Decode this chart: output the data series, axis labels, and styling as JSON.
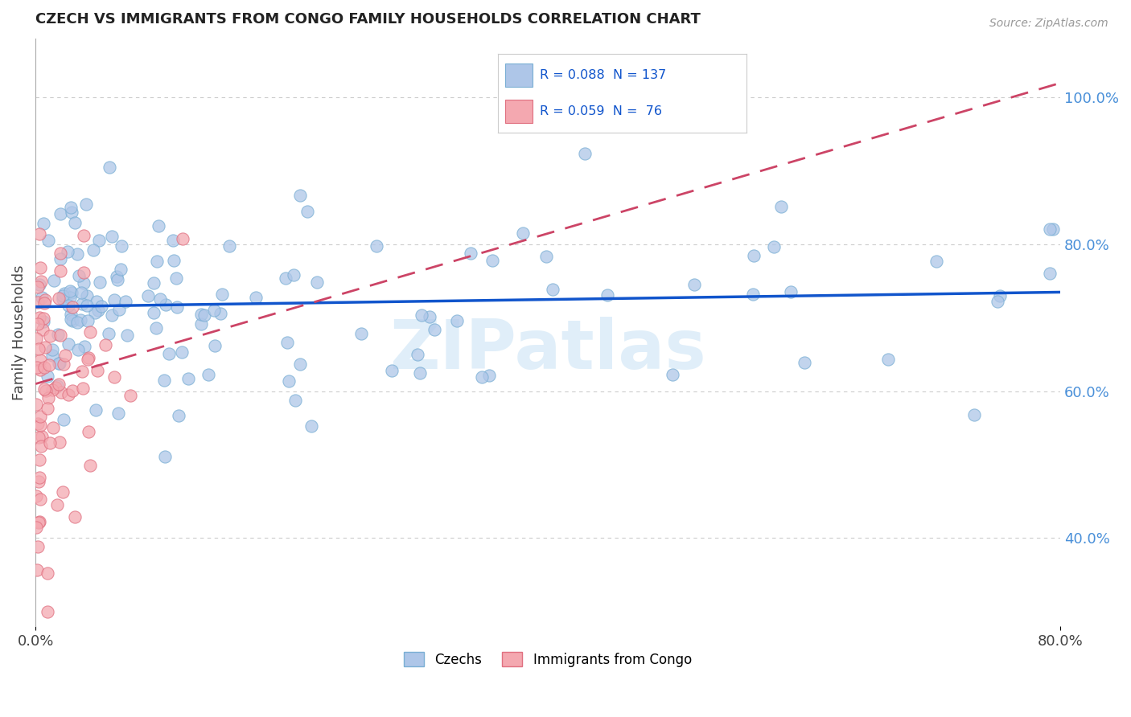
{
  "title": "CZECH VS IMMIGRANTS FROM CONGO FAMILY HOUSEHOLDS CORRELATION CHART",
  "source": "Source: ZipAtlas.com",
  "ylabel_left": "Family Households",
  "czechs_color": "#aec6e8",
  "czechs_edge_color": "#7aafd4",
  "congo_color": "#f4a8b0",
  "congo_edge_color": "#e07080",
  "trend_czech_color": "#1155cc",
  "trend_congo_color": "#cc4466",
  "watermark": "ZIPatlas",
  "bg_color": "#ffffff",
  "legend_text1": "R = 0.088  N = 137",
  "legend_text2": "R = 0.059  N =  76",
  "legend_color1": "#1155cc",
  "legend_color2": "#1155cc",
  "right_tick_color": "#4a90d9",
  "xlim": [
    0.0,
    0.8
  ],
  "ylim": [
    0.28,
    1.08
  ],
  "right_yticks": [
    0.4,
    0.6,
    0.8,
    1.0
  ],
  "right_yticklabels": [
    "40.0%",
    "60.0%",
    "80.0%",
    "100.0%"
  ]
}
